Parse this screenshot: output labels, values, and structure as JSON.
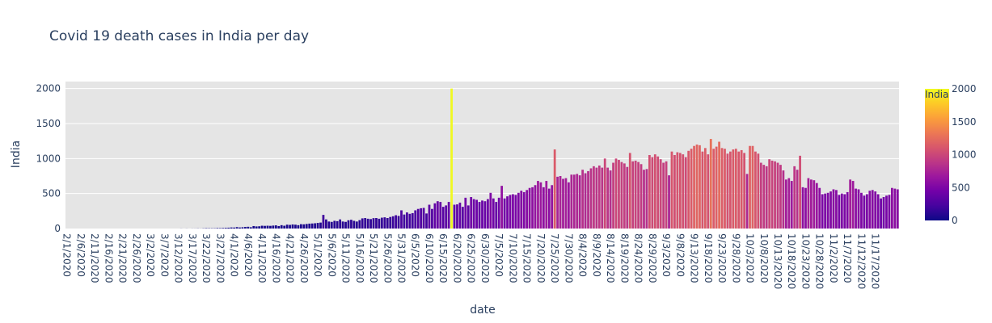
{
  "chart_data": {
    "type": "bar",
    "title": "Covid 19 death cases in India per day",
    "xlabel": "date",
    "ylabel": "India",
    "ylim": [
      0,
      2100
    ],
    "y_ticks": [
      0,
      500,
      1000,
      1500,
      2000
    ],
    "grid": true,
    "x_tick_labels": [
      "2/1/2020",
      "2/6/2020",
      "2/11/2020",
      "2/16/2020",
      "2/21/2020",
      "2/26/2020",
      "3/2/2020",
      "3/7/2020",
      "3/12/2020",
      "3/17/2020",
      "3/22/2020",
      "3/27/2020",
      "4/1/2020",
      "4/6/2020",
      "4/11/2020",
      "4/16/2020",
      "4/21/2020",
      "4/26/2020",
      "5/1/2020",
      "5/6/2020",
      "5/11/2020",
      "5/16/2020",
      "5/21/2020",
      "5/26/2020",
      "5/31/2020",
      "6/5/2020",
      "6/10/2020",
      "6/15/2020",
      "6/20/2020",
      "6/25/2020",
      "6/30/2020",
      "7/5/2020",
      "7/10/2020",
      "7/15/2020",
      "7/20/2020",
      "7/25/2020",
      "7/30/2020",
      "8/4/2020",
      "8/9/2020",
      "8/14/2020",
      "8/19/2020",
      "8/24/2020",
      "8/29/2020",
      "9/3/2020",
      "9/8/2020",
      "9/13/2020",
      "9/18/2020",
      "9/23/2020",
      "9/28/2020",
      "10/3/2020",
      "10/8/2020",
      "10/13/2020",
      "10/18/2020",
      "10/23/2020",
      "10/28/2020",
      "11/2/2020",
      "11/7/2020",
      "11/12/2020",
      "11/17/2020"
    ],
    "first_date": "2/1/2020",
    "values": [
      0,
      0,
      0,
      0,
      0,
      0,
      0,
      0,
      0,
      0,
      0,
      0,
      0,
      0,
      0,
      0,
      0,
      0,
      0,
      0,
      0,
      0,
      0,
      0,
      0,
      0,
      0,
      0,
      0,
      0,
      0,
      0,
      0,
      0,
      0,
      0,
      0,
      0,
      0,
      0,
      0,
      1,
      0,
      1,
      0,
      1,
      1,
      2,
      1,
      3,
      5,
      4,
      4,
      4,
      7,
      6,
      8,
      10,
      12,
      15,
      14,
      20,
      15,
      18,
      22,
      25,
      18,
      35,
      30,
      32,
      40,
      38,
      40,
      38,
      42,
      45,
      35,
      48,
      40,
      55,
      52,
      58,
      55,
      48,
      62,
      60,
      65,
      70,
      72,
      75,
      80,
      85,
      195,
      130,
      100,
      95,
      110,
      105,
      130,
      100,
      95,
      118,
      125,
      110,
      100,
      120,
      145,
      150,
      140,
      135,
      148,
      150,
      140,
      155,
      160,
      150,
      165,
      175,
      190,
      180,
      260,
      200,
      230,
      210,
      220,
      260,
      280,
      290,
      295,
      215,
      340,
      280,
      360,
      390,
      380,
      310,
      330,
      380,
      2000,
      340,
      345,
      370,
      310,
      440,
      330,
      450,
      420,
      410,
      380,
      400,
      390,
      420,
      510,
      430,
      380,
      440,
      610,
      430,
      460,
      480,
      490,
      480,
      510,
      540,
      520,
      550,
      580,
      590,
      620,
      680,
      660,
      590,
      680,
      570,
      620,
      1130,
      740,
      750,
      710,
      720,
      660,
      770,
      770,
      780,
      760,
      840,
      790,
      820,
      860,
      890,
      870,
      900,
      870,
      1000,
      870,
      830,
      940,
      1000,
      980,
      950,
      930,
      880,
      1080,
      960,
      970,
      950,
      920,
      840,
      850,
      1050,
      1020,
      1060,
      1030,
      990,
      940,
      960,
      760,
      1100,
      1050,
      1090,
      1080,
      1060,
      1020,
      1110,
      1140,
      1180,
      1200,
      1190,
      1100,
      1150,
      1060,
      1280,
      1140,
      1170,
      1240,
      1150,
      1140,
      1070,
      1100,
      1130,
      1140,
      1100,
      1120,
      1080,
      780,
      1180,
      1180,
      1100,
      1070,
      940,
      910,
      890,
      990,
      970,
      960,
      940,
      910,
      830,
      700,
      720,
      680,
      890,
      840,
      1040,
      590,
      580,
      720,
      700,
      690,
      650,
      580,
      490,
      500,
      510,
      530,
      560,
      550,
      480,
      500,
      490,
      520,
      700,
      680,
      570,
      560,
      510,
      470,
      490,
      540,
      550,
      530,
      490,
      430,
      450,
      470,
      480,
      580,
      570,
      560
    ],
    "colorbar": {
      "title": "India",
      "range": [
        0,
        2000
      ],
      "ticks": [
        0,
        500,
        1000,
        1500,
        2000
      ],
      "colorscale": [
        "#0d0887",
        "#46039f",
        "#7201a8",
        "#9c179e",
        "#bd3786",
        "#d8576b",
        "#ed7953",
        "#fb9f3a",
        "#fdca26",
        "#f0f921"
      ]
    },
    "colors": {
      "plot_background": "#e5e5e5",
      "grid": "#ffffff",
      "text": "#2a3f5f"
    }
  }
}
